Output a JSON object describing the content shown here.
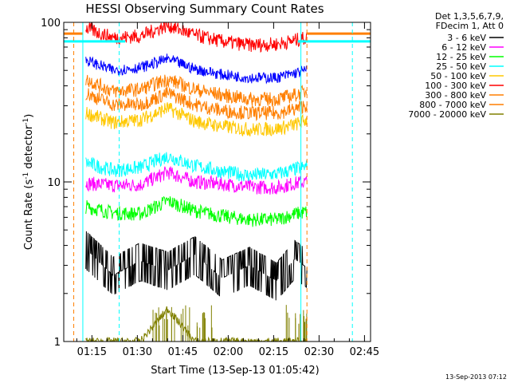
{
  "chart_data": {
    "type": "line",
    "title": "HESSI Observing Summary Count Rates",
    "xlabel": "Start Time (13-Sep-13 01:05:42)",
    "ylabel": "Count Rate (s",
    "ylabel_sup": "-1",
    "ylabel_rest": " detector",
    "ylabel_close": ")",
    "y_scale": "log",
    "ylim": [
      1,
      100
    ],
    "xlim": [
      "01:05:42",
      "02:47:00"
    ],
    "x_ticks": [
      "01:15",
      "01:30",
      "01:45",
      "02:00",
      "02:15",
      "02:30",
      "02:45"
    ],
    "y_ticks": [
      "1",
      "10",
      "100"
    ],
    "legend_header": [
      "Det 1,3,5,6,7,9,",
      "FDecim 1, Att 0"
    ],
    "legend_position": "right",
    "timestamp": "13-Sep-2013 07:12",
    "grid": false,
    "series": [
      {
        "name": "3 - 6 keV",
        "color": "#000000",
        "values": [
          3.8,
          2.6,
          3.2,
          2.8,
          3.5,
          2.5,
          3.0,
          2.4,
          3.3,
          2.9
        ]
      },
      {
        "name": "6 - 12 keV",
        "color": "#ff00ff",
        "values": [
          9.8,
          9.5,
          9.6,
          11.5,
          10.0,
          9.7,
          9.3,
          9.2,
          9.8,
          10.0
        ]
      },
      {
        "name": "12 - 25 keV",
        "color": "#00ff00",
        "values": [
          7.0,
          6.4,
          6.3,
          7.6,
          6.6,
          6.1,
          5.8,
          5.8,
          6.3,
          6.5
        ]
      },
      {
        "name": "25 - 50 keV",
        "color": "#00ffff",
        "values": [
          13.2,
          11.8,
          12.3,
          14.5,
          12.6,
          11.6,
          11.0,
          11.2,
          12.0,
          12.5
        ]
      },
      {
        "name": "50 - 100 keV",
        "color": "#ffc800",
        "values": [
          27,
          23.5,
          24.5,
          29,
          24,
          22.3,
          21.3,
          21.5,
          22.8,
          24.5
        ]
      },
      {
        "name": "100 - 300 keV",
        "color": "#ff0000",
        "values": [
          92,
          80,
          82,
          96,
          83,
          76,
          72,
          73,
          77,
          80
        ]
      },
      {
        "name": "300 - 800 keV",
        "color": "#ff7f00",
        "values": [
          44,
          37,
          38,
          44,
          38,
          35,
          33,
          33,
          35,
          37
        ]
      },
      {
        "name": "800 - 7000 keV",
        "color": "#ff7f00",
        "values": [
          36,
          30.5,
          30.5,
          36,
          30.5,
          28,
          27,
          27,
          28.5,
          30.5
        ]
      },
      {
        "name": "7000 - 20000 keV",
        "color": "#808000",
        "values": [
          1.0,
          1.0,
          1.0,
          1.6,
          1.0,
          1.0,
          1.0,
          1.0,
          1.0,
          1.0
        ]
      }
    ],
    "series_colors_override": {
      "blue_band": "#0000ff"
    },
    "blue_band_values": [
      58,
      50,
      52,
      59,
      51,
      47,
      45,
      45,
      48,
      50
    ],
    "x_sample_times": [
      "01:13",
      "01:22",
      "01:31",
      "01:40",
      "01:49",
      "01:58",
      "02:07",
      "02:16",
      "02:22",
      "02:26"
    ],
    "vertical_markers": [
      {
        "time": "01:09",
        "color": "#ff7f00",
        "dashed": true
      },
      {
        "time": "01:12",
        "color": "#00ffff",
        "dashed": false
      },
      {
        "time": "01:24",
        "color": "#00ffff",
        "dashed": true
      },
      {
        "time": "02:24",
        "color": "#00ffff",
        "dashed": false
      },
      {
        "time": "02:26",
        "color": "#ff7f00",
        "dashed": true
      },
      {
        "time": "02:41",
        "color": "#00ffff",
        "dashed": true
      }
    ],
    "high_level_bands": [
      {
        "color": "#ff7f00",
        "level": 85,
        "ranges": [
          [
            "01:05:42",
            "01:12"
          ],
          [
            "02:26",
            "02:47"
          ]
        ]
      },
      {
        "color": "#00ffff",
        "level": 76,
        "ranges": [
          [
            "01:05:42",
            "01:26"
          ],
          [
            "02:23",
            "02:47"
          ]
        ]
      }
    ],
    "plot_extent": [
      "01:13",
      "02:26"
    ]
  }
}
